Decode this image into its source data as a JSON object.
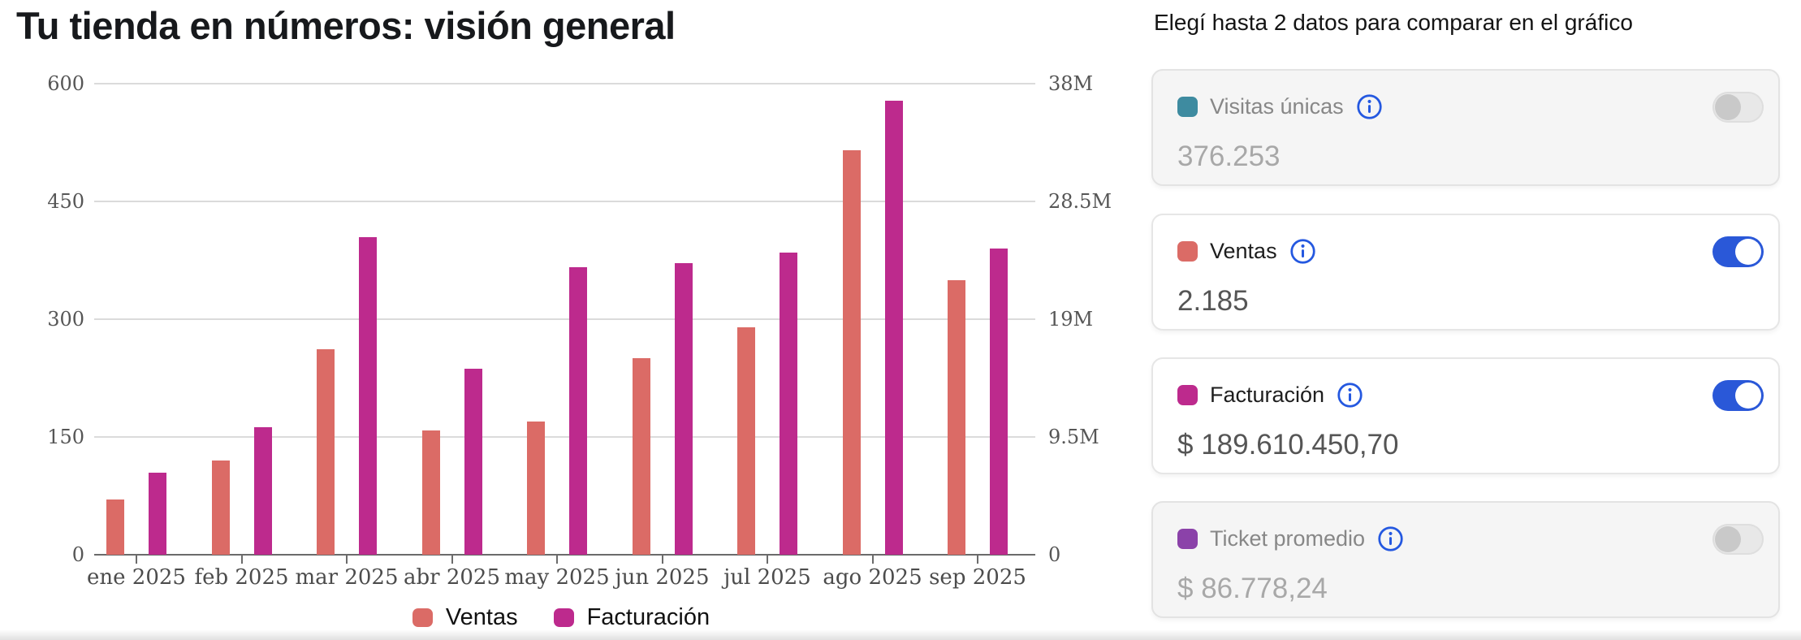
{
  "page": {
    "title": "Tu tienda en números: visión general"
  },
  "panel": {
    "header": "Elegí hasta 2 datos para comparar en el gráfico",
    "cards": [
      {
        "id": "visitas-unicas",
        "label": "Visitas únicas",
        "value": "376.253",
        "swatch_color": "#3e8ba0",
        "enabled": false
      },
      {
        "id": "ventas",
        "label": "Ventas",
        "value": "2.185",
        "swatch_color": "#db6b66",
        "enabled": true
      },
      {
        "id": "facturacion",
        "label": "Facturación",
        "value": "$ 189.610.450,70",
        "swatch_color": "#bd2a8d",
        "enabled": true
      },
      {
        "id": "ticket-promedio",
        "label": "Ticket promedio",
        "value": "$ 86.778,24",
        "swatch_color": "#8b42a9",
        "enabled": false
      }
    ],
    "info_icon_color": "#2458e0",
    "toggle_on_color": "#2a58d8"
  },
  "chart_data": {
    "type": "bar",
    "title": "Tu tienda en números: visión general",
    "categories": [
      "ene 2025",
      "feb 2025",
      "mar 2025",
      "abr 2025",
      "may 2025",
      "jun 2025",
      "jul 2025",
      "ago 2025",
      "sep 2025"
    ],
    "series": [
      {
        "name": "Ventas",
        "axis": "left",
        "color": "#db6b66",
        "values": [
          70,
          120,
          262,
          158,
          170,
          250,
          290,
          515,
          350
        ]
      },
      {
        "name": "Facturación",
        "axis": "right",
        "color": "#bd2a8d",
        "unit": "millions",
        "values": [
          6.6,
          10.3,
          25.6,
          15.0,
          23.2,
          23.5,
          24.4,
          36.6,
          24.7
        ]
      }
    ],
    "left_axis": {
      "range": [
        0,
        600
      ],
      "ticks": [
        600,
        450,
        300,
        150,
        0
      ],
      "tick_labels": [
        "600",
        "450",
        "300",
        "150",
        "0"
      ]
    },
    "right_axis": {
      "range": [
        0,
        38
      ],
      "ticks": [
        38,
        28.5,
        19,
        9.5,
        0
      ],
      "tick_labels": [
        "38M",
        "28.5M",
        "19M",
        "9.5M",
        "0"
      ]
    },
    "grid": true,
    "legend": [
      "Ventas",
      "Facturación"
    ],
    "legend_position": "bottom"
  }
}
